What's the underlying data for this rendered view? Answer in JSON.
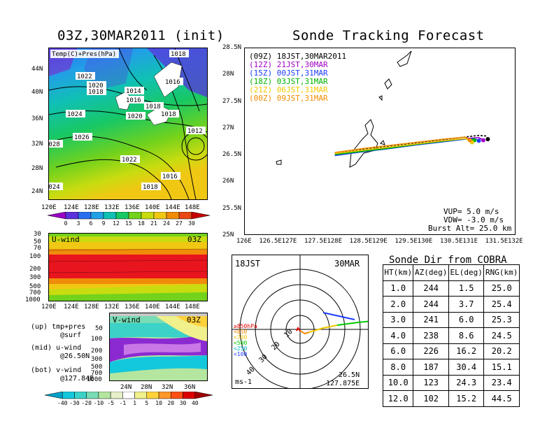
{
  "left_title": "03Z,30MAR2011 (init)",
  "right_title": "Sonde Tracking Forecast",
  "map_top": {
    "label": "Temp(C)+Pres(hPa)",
    "lat_ticks": [
      "44N",
      "40N",
      "36N",
      "32N",
      "28N",
      "24N"
    ],
    "lon_ticks": [
      "120E",
      "124E",
      "128E",
      "132E",
      "136E",
      "140E",
      "144E",
      "148E"
    ],
    "isobars": [
      "1018",
      "1022",
      "1020",
      "1018",
      "1014",
      "1016",
      "1016",
      "1018",
      "1024",
      "1020",
      "1018",
      "1026",
      "1012",
      "1028",
      "1022",
      "1016",
      "1018",
      "1024"
    ],
    "colorbar": [
      "0",
      "3",
      "6",
      "9",
      "12",
      "15",
      "18",
      "21",
      "24",
      "27",
      "30"
    ],
    "colorbar_colors": [
      "#9b00c8",
      "#5a32dc",
      "#2a6ef0",
      "#22a0e6",
      "#10c0b4",
      "#18c864",
      "#72d21c",
      "#c8dc10",
      "#f0c814",
      "#f08c0a",
      "#e84614",
      "#c80000"
    ]
  },
  "uwind": {
    "label": "U-wind",
    "time": "03Z",
    "y_ticks": [
      "30",
      "50",
      "70",
      "100",
      "200",
      "300",
      "500",
      "700",
      "1000"
    ],
    "x_ticks": [
      "120E",
      "124E",
      "128E",
      "132E",
      "136E",
      "140E",
      "144E",
      "148E"
    ]
  },
  "vwind": {
    "label": "V-wind",
    "time": "03Z",
    "y_ticks": [
      "50",
      "100",
      "200",
      "300",
      "500",
      "700",
      "1000"
    ],
    "x_ticks": [
      "24N",
      "28N",
      "32N",
      "36N"
    ],
    "colorbar": [
      "-40",
      "-30",
      "-20",
      "-10",
      "-5",
      "-1",
      "1",
      "5",
      "10",
      "20",
      "30",
      "40"
    ],
    "colorbar_colors": [
      "#00a0c8",
      "#14c8dc",
      "#3cd2c8",
      "#78dcb4",
      "#b4e6a0",
      "#e6f0c8",
      "#ffffff",
      "#f0f08c",
      "#ffd23c",
      "#ff9628",
      "#ff5014",
      "#dc0000",
      "#a00000"
    ]
  },
  "legend_text": {
    "up": "(up) tmp+pres",
    "up2": "@surf",
    "mid": "(mid) u-wind",
    "mid2": "@26.50N",
    "bot": "(bot) v-wind",
    "bot2": "@127.84E"
  },
  "track_map": {
    "lat_ticks": [
      "28.5N",
      "28N",
      "27.5N",
      "27N",
      "26.5N",
      "26N",
      "25.5N",
      "25N"
    ],
    "lon_ticks": [
      "126E",
      "126.5E",
      "127E",
      "127.5E",
      "128E",
      "128.5E",
      "129E",
      "129.5E",
      "130E",
      "130.5E",
      "131E",
      "131.5E",
      "132E"
    ],
    "legend": [
      {
        "text": "(09Z) 18JST,30MAR2011",
        "color": "#000000"
      },
      {
        "text": "(12Z) 21JST,30MAR",
        "color": "#a000c8"
      },
      {
        "text": "(15Z) 00JST,31MAR",
        "color": "#1e3cff"
      },
      {
        "text": "(18Z) 03JST,31MAR",
        "color": "#00b400"
      },
      {
        "text": "(21Z) 06JST,31MAR",
        "color": "#f0c800"
      },
      {
        "text": "(00Z) 09JST,31MAR",
        "color": "#f08c00"
      }
    ],
    "info": [
      "VUP= 5.0 m/s",
      "VDW= -3.0 m/s",
      "Burst Alt= 25.0 km"
    ]
  },
  "chart_data": {
    "type": "line",
    "title": "Sonde Tracking Forecast",
    "xlim": [
      126,
      132
    ],
    "ylim": [
      25,
      28.5
    ],
    "series": [
      {
        "name": "(09Z) 18JST,30MAR2011",
        "color": "#000000",
        "x": [
          128.0,
          128.6,
          129.2,
          129.8,
          130.4,
          130.9,
          131.2,
          131.35,
          131.4
        ],
        "y": [
          26.52,
          26.6,
          26.66,
          26.72,
          26.78,
          26.83,
          26.86,
          26.85,
          26.79
        ]
      },
      {
        "name": "(12Z) 21JST,30MAR",
        "color": "#a000c8",
        "x": [
          128.0,
          128.6,
          129.2,
          129.8,
          130.4,
          130.9,
          131.2,
          131.3
        ],
        "y": [
          26.5,
          26.57,
          26.63,
          26.7,
          26.76,
          26.8,
          26.82,
          26.77
        ]
      },
      {
        "name": "(15Z) 00JST,31MAR",
        "color": "#1e3cff",
        "x": [
          128.0,
          128.6,
          129.2,
          129.8,
          130.4,
          130.9,
          131.1,
          131.2
        ],
        "y": [
          26.48,
          26.55,
          26.61,
          26.68,
          26.74,
          26.79,
          26.8,
          26.76
        ]
      },
      {
        "name": "(18Z) 03JST,31MAR",
        "color": "#00b400",
        "x": [
          128.0,
          128.6,
          129.2,
          129.8,
          130.4,
          130.9,
          131.1
        ],
        "y": [
          26.5,
          26.56,
          26.62,
          26.69,
          26.75,
          26.8,
          26.77
        ]
      },
      {
        "name": "(21Z) 06JST,31MAR",
        "color": "#f0c800",
        "x": [
          128.0,
          128.6,
          129.2,
          129.8,
          130.4,
          130.9,
          131.05
        ],
        "y": [
          26.52,
          26.58,
          26.64,
          26.7,
          26.76,
          26.8,
          26.73
        ]
      },
      {
        "name": "(00Z) 09JST,31MAR",
        "color": "#f08c00",
        "x": [
          128.0,
          128.6,
          129.2,
          129.8,
          130.4,
          130.9,
          131.0
        ],
        "y": [
          26.54,
          26.61,
          26.67,
          26.73,
          26.79,
          26.83,
          26.77
        ]
      }
    ]
  },
  "polar": {
    "time": "18JST",
    "date": "30MAR",
    "ring_labels": [
      "10",
      "20",
      "30",
      "40"
    ],
    "legend": [
      {
        "text": "≥850hPa",
        "color": "#e60000"
      },
      {
        "text": "<850",
        "color": "#f08c00"
      },
      {
        "text": "<700",
        "color": "#f0c800"
      },
      {
        "text": "<500",
        "color": "#00c800"
      },
      {
        "text": "<250",
        "color": "#00b4c8"
      },
      {
        "text": "<100",
        "color": "#1e3cff"
      }
    ],
    "unit": "ms-1",
    "loc_lat": "26.5N",
    "loc_lon": "127.875E"
  },
  "sonde_dir": {
    "title": "Sonde Dir from COBRA",
    "headers": [
      "HT(km)",
      "AZ(deg)",
      "EL(deg)",
      "RNG(km)"
    ],
    "rows": [
      [
        "1.0",
        "244",
        "1.5",
        "25.0"
      ],
      [
        "2.0",
        "244",
        "3.7",
        "25.4"
      ],
      [
        "3.0",
        "241",
        "6.0",
        "25.3"
      ],
      [
        "4.0",
        "238",
        "8.6",
        "24.5"
      ],
      [
        "6.0",
        "226",
        "16.2",
        "20.2"
      ],
      [
        "8.0",
        "187",
        "30.4",
        "15.1"
      ],
      [
        "10.0",
        "123",
        "24.3",
        "23.4"
      ],
      [
        "12.0",
        "102",
        "15.2",
        "44.5"
      ]
    ]
  }
}
